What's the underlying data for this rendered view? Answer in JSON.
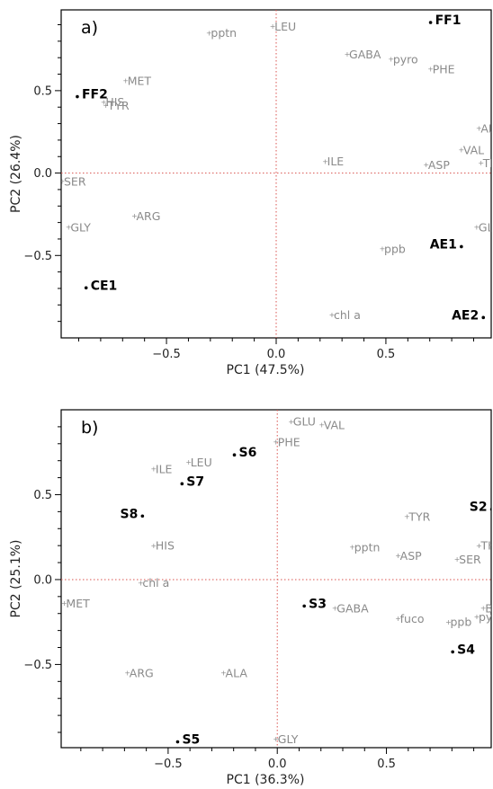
{
  "chart_data": [
    {
      "type": "scatter",
      "panel_label": "a)",
      "xlabel": "PC1 (47.5%)",
      "ylabel": "PC2 (26.4%)",
      "xlim": [
        -0.98,
        0.98
      ],
      "ylim": [
        -1.0,
        0.99
      ],
      "xticks": [
        -0.5,
        0.0,
        0.5
      ],
      "yticks": [
        -0.5,
        0.0,
        0.5
      ],
      "xticklabels": [
        "−0.5",
        "0.0",
        "0.5"
      ],
      "yticklabels": [
        "−0.5",
        "0.0",
        "0.5"
      ],
      "variables": [
        {
          "label": "LEU",
          "x": -0.02,
          "y": 0.89
        },
        {
          "label": "pptn",
          "x": -0.31,
          "y": 0.85
        },
        {
          "label": "GABA",
          "x": 0.32,
          "y": 0.72
        },
        {
          "label": "pyro",
          "x": 0.52,
          "y": 0.69
        },
        {
          "label": "PHE",
          "x": 0.7,
          "y": 0.63
        },
        {
          "label": "MET",
          "x": -0.69,
          "y": 0.56
        },
        {
          "label": "HIS",
          "x": -0.79,
          "y": 0.43
        },
        {
          "label": "TYR",
          "x": -0.78,
          "y": 0.41
        },
        {
          "label": "ALA",
          "x": 0.92,
          "y": 0.27
        },
        {
          "label": "VAL",
          "x": 0.84,
          "y": 0.14
        },
        {
          "label": "THR",
          "x": 0.93,
          "y": 0.06
        },
        {
          "label": "ILE",
          "x": 0.22,
          "y": 0.07
        },
        {
          "label": "ASP",
          "x": 0.68,
          "y": 0.05
        },
        {
          "label": "SER",
          "x": -0.98,
          "y": -0.05
        },
        {
          "label": "ARG",
          "x": -0.65,
          "y": -0.26
        },
        {
          "label": "GLY",
          "x": -0.95,
          "y": -0.33
        },
        {
          "label": "GLU",
          "x": 0.91,
          "y": -0.33
        },
        {
          "label": "ppb",
          "x": 0.48,
          "y": -0.46
        },
        {
          "label": "chl a",
          "x": 0.25,
          "y": -0.86
        }
      ],
      "observations": [
        {
          "label": "FF1",
          "x": 0.72,
          "y": 0.93,
          "dot": "left"
        },
        {
          "label": "FF2",
          "x": -0.89,
          "y": 0.48,
          "dot": "left"
        },
        {
          "label": "AE1",
          "x": 0.7,
          "y": -0.43,
          "dot": "right"
        },
        {
          "label": "CE1",
          "x": -0.85,
          "y": -0.68,
          "dot": "left"
        },
        {
          "label": "AE2",
          "x": 0.8,
          "y": -0.86,
          "dot": "right"
        }
      ]
    },
    {
      "type": "scatter",
      "panel_label": "b)",
      "xlabel": "PC1 (36.3%)",
      "ylabel": "PC2 (25.1%)",
      "xlim": [
        -0.99,
        0.98
      ],
      "ylim": [
        -0.99,
        1.0
      ],
      "xticks": [
        -0.5,
        0.0,
        0.5
      ],
      "yticks": [
        -0.5,
        0.0,
        0.5
      ],
      "xticklabels": [
        "−0.5",
        "0.0",
        "0.5"
      ],
      "yticklabels": [
        "−0.5",
        "0.0",
        "0.5"
      ],
      "variables": [
        {
          "label": "GLU",
          "x": 0.06,
          "y": 0.93
        },
        {
          "label": "VAL",
          "x": 0.2,
          "y": 0.91
        },
        {
          "label": "PHE",
          "x": -0.01,
          "y": 0.81
        },
        {
          "label": "LEU",
          "x": -0.41,
          "y": 0.69
        },
        {
          "label": "ILE",
          "x": -0.57,
          "y": 0.65
        },
        {
          "label": "TYR",
          "x": 0.59,
          "y": 0.37
        },
        {
          "label": "HIS",
          "x": -0.57,
          "y": 0.2
        },
        {
          "label": "pptn",
          "x": 0.34,
          "y": 0.19
        },
        {
          "label": "THR",
          "x": 0.92,
          "y": 0.2
        },
        {
          "label": "ASP",
          "x": 0.55,
          "y": 0.14
        },
        {
          "label": "SER",
          "x": 0.82,
          "y": 0.12
        },
        {
          "label": "chl a",
          "x": -0.63,
          "y": -0.02
        },
        {
          "label": "MET",
          "x": -0.98,
          "y": -0.14
        },
        {
          "label": "GABA",
          "x": 0.26,
          "y": -0.17
        },
        {
          "label": "BALA",
          "x": 0.94,
          "y": -0.17
        },
        {
          "label": "fuco",
          "x": 0.55,
          "y": -0.23
        },
        {
          "label": "ppb",
          "x": 0.78,
          "y": -0.25
        },
        {
          "label": "pyro",
          "x": 0.91,
          "y": -0.22
        },
        {
          "label": "ARG",
          "x": -0.69,
          "y": -0.55
        },
        {
          "label": "ALA",
          "x": -0.25,
          "y": -0.55
        },
        {
          "label": "GLY",
          "x": -0.01,
          "y": -0.94
        }
      ],
      "observations": [
        {
          "label": "S6",
          "x": -0.18,
          "y": 0.75,
          "dot": "left"
        },
        {
          "label": "S7",
          "x": -0.42,
          "y": 0.58,
          "dot": "left"
        },
        {
          "label": "S2",
          "x": 0.88,
          "y": 0.43,
          "dot": "right"
        },
        {
          "label": "S8",
          "x": -0.72,
          "y": 0.39,
          "dot": "right"
        },
        {
          "label": "S3",
          "x": 0.14,
          "y": -0.14,
          "dot": "left"
        },
        {
          "label": "S4",
          "x": 0.82,
          "y": -0.41,
          "dot": "left"
        },
        {
          "label": "S5",
          "x": -0.44,
          "y": -0.94,
          "dot": "left"
        }
      ]
    }
  ]
}
